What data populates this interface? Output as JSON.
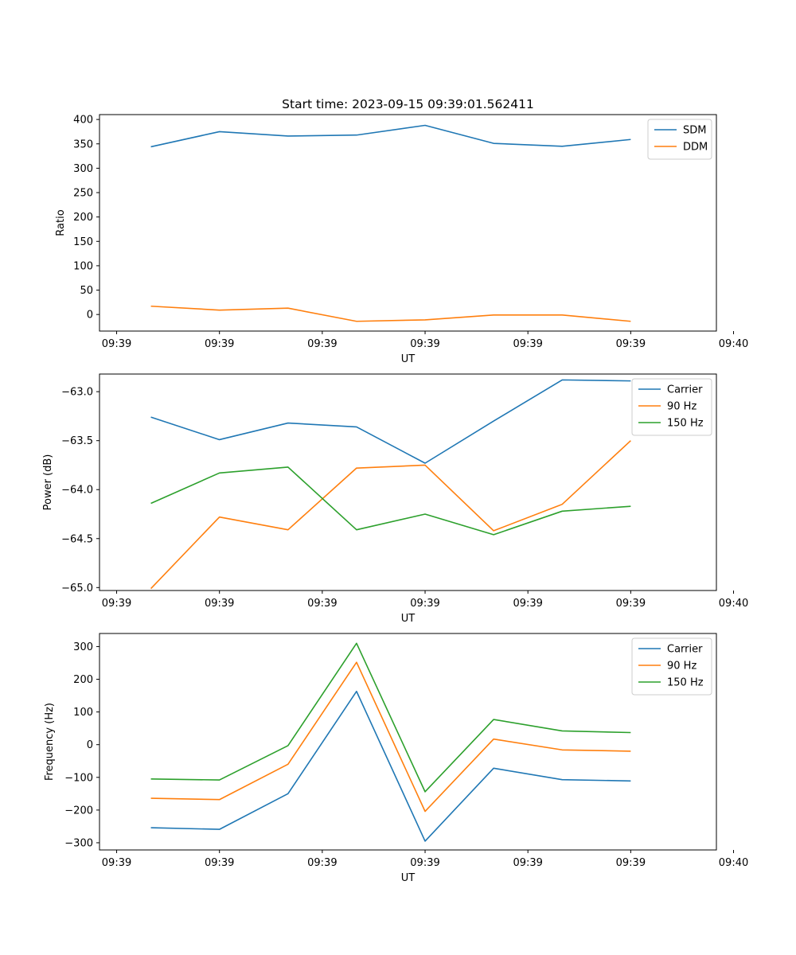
{
  "title": "Start time: 2023-09-15 09:39:01.562411",
  "colors": {
    "blue": "#1f77b4",
    "orange": "#ff7f0e",
    "green": "#2ca02c"
  },
  "chart_data": [
    {
      "type": "line",
      "xlabel": "UT",
      "ylabel": "Ratio",
      "xlim": [
        -0.25,
        8.75
      ],
      "ylim": [
        -34,
        410
      ],
      "x": [
        0.5,
        1.5,
        2.5,
        3.5,
        4.5,
        5.5,
        6.5,
        7.5
      ],
      "x_ticks": [
        0,
        1.5,
        3,
        4.5,
        6,
        7.5,
        9
      ],
      "x_tick_labels": [
        "09:39",
        "09:39",
        "09:39",
        "09:39",
        "09:39",
        "09:39",
        "09:40"
      ],
      "y_ticks": [
        0,
        50,
        100,
        150,
        200,
        250,
        300,
        350,
        400
      ],
      "y_tick_labels": [
        "0",
        "50",
        "100",
        "150",
        "200",
        "250",
        "300",
        "350",
        "400"
      ],
      "legend": "top-right",
      "series": [
        {
          "name": "SDM",
          "color": "#1f77b4",
          "values": [
            344,
            375,
            366,
            368,
            388,
            351,
            345,
            359
          ]
        },
        {
          "name": "DDM",
          "color": "#ff7f0e",
          "values": [
            17,
            9,
            13,
            -14,
            -11,
            -1,
            -1,
            -14
          ]
        }
      ]
    },
    {
      "type": "line",
      "xlabel": "UT",
      "ylabel": "Power (dB)",
      "xlim": [
        -0.25,
        8.75
      ],
      "ylim": [
        -65.03,
        -62.82
      ],
      "x": [
        0.5,
        1.5,
        2.5,
        3.5,
        4.5,
        5.5,
        6.5,
        7.5
      ],
      "x_ticks": [
        0,
        1.5,
        3,
        4.5,
        6,
        7.5,
        9
      ],
      "x_tick_labels": [
        "09:39",
        "09:39",
        "09:39",
        "09:39",
        "09:39",
        "09:39",
        "09:40"
      ],
      "y_ticks": [
        -65.0,
        -64.5,
        -64.0,
        -63.5,
        -63.0
      ],
      "y_tick_labels": [
        "−65.0",
        "−64.5",
        "−64.0",
        "−63.5",
        "−63.0"
      ],
      "legend": "top-right",
      "series": [
        {
          "name": "Carrier",
          "color": "#1f77b4",
          "values": [
            -63.26,
            -63.49,
            -63.32,
            -63.36,
            -63.73,
            -63.3,
            -62.88,
            -62.89
          ]
        },
        {
          "name": "90 Hz",
          "color": "#ff7f0e",
          "values": [
            -65.01,
            -64.28,
            -64.41,
            -63.78,
            -63.75,
            -64.42,
            -64.15,
            -63.5
          ]
        },
        {
          "name": "150 Hz",
          "color": "#2ca02c",
          "values": [
            -64.14,
            -63.83,
            -63.77,
            -64.41,
            -64.25,
            -64.46,
            -64.22,
            -64.17
          ]
        }
      ]
    },
    {
      "type": "line",
      "xlabel": "UT",
      "ylabel": "Frequency (Hz)",
      "xlim": [
        -0.25,
        8.75
      ],
      "ylim": [
        -322,
        340
      ],
      "x": [
        0.5,
        1.5,
        2.5,
        3.5,
        4.5,
        5.5,
        6.5,
        7.5
      ],
      "x_ticks": [
        0,
        1.5,
        3,
        4.5,
        6,
        7.5,
        9
      ],
      "x_tick_labels": [
        "09:39",
        "09:39",
        "09:39",
        "09:39",
        "09:39",
        "09:39",
        "09:40"
      ],
      "y_ticks": [
        -300,
        -200,
        -100,
        0,
        100,
        200,
        300
      ],
      "y_tick_labels": [
        "−300",
        "−200",
        "−100",
        "0",
        "100",
        "200",
        "300"
      ],
      "legend": "top-right",
      "series": [
        {
          "name": "Carrier",
          "color": "#1f77b4",
          "values": [
            -254,
            -259,
            -150,
            163,
            -295,
            -72,
            -107,
            -111
          ]
        },
        {
          "name": "90 Hz",
          "color": "#ff7f0e",
          "values": [
            -164,
            -168,
            -60,
            252,
            -204,
            17,
            -16,
            -20
          ]
        },
        {
          "name": "150 Hz",
          "color": "#2ca02c",
          "values": [
            -105,
            -108,
            -3,
            310,
            -144,
            77,
            42,
            37
          ]
        }
      ]
    }
  ]
}
